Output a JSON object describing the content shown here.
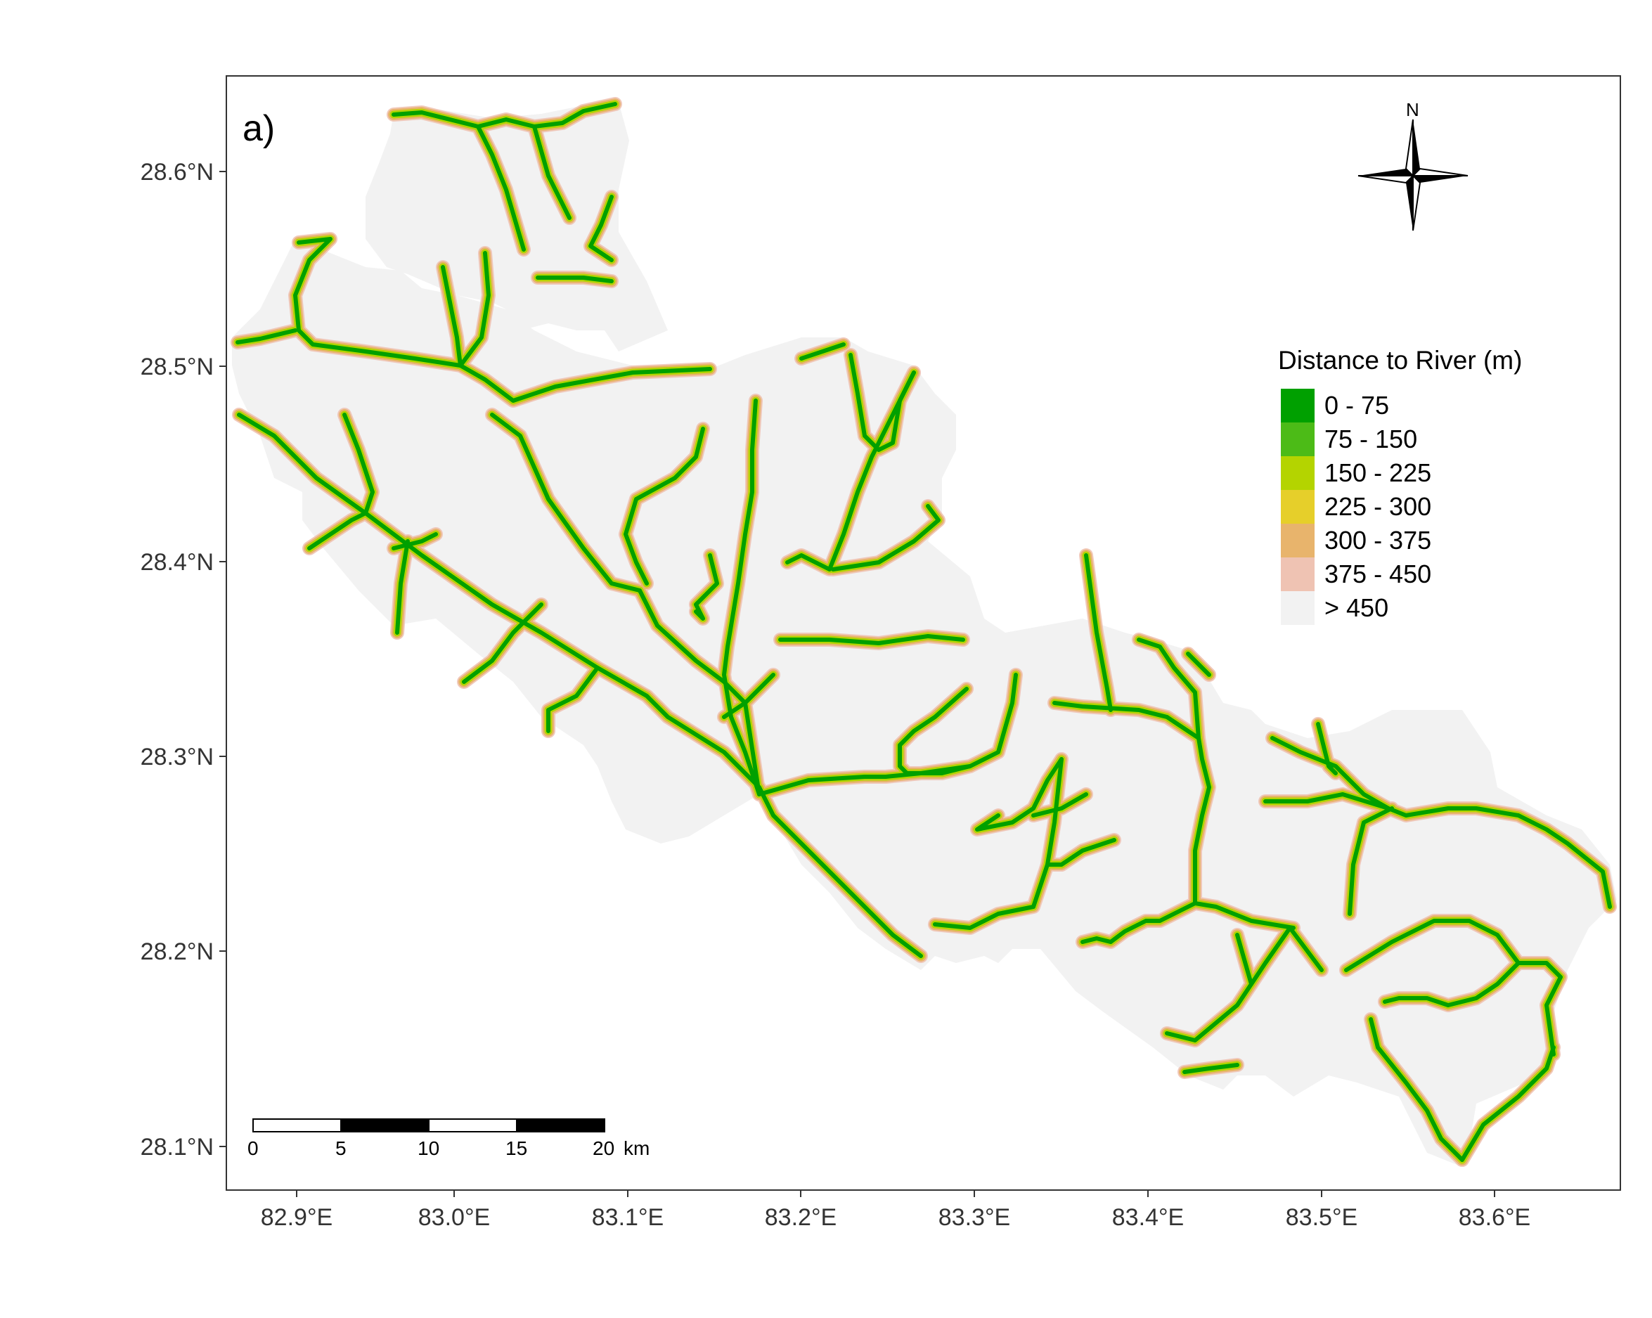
{
  "panel_label": "a)",
  "legend": {
    "title": "Distance to River (m)",
    "classes": [
      {
        "label": "0 - 75",
        "color": "#00a000"
      },
      {
        "label": "75 - 150",
        "color": "#4cbb17"
      },
      {
        "label": "150 - 225",
        "color": "#b4d400"
      },
      {
        "label": "225 - 300",
        "color": "#e6cf2a"
      },
      {
        "label": "300 - 375",
        "color": "#e8b46c"
      },
      {
        "label": "375 - 450",
        "color": "#efc3b3"
      },
      {
        "label": "> 450",
        "color": "#f2f2f2"
      }
    ]
  },
  "north_arrow": {
    "label": "N",
    "icon": "north-arrow-icon"
  },
  "scale_bar": {
    "ticks": [
      "0",
      "5",
      "10",
      "15",
      "20"
    ],
    "unit": "km"
  },
  "axes": {
    "x_ticks": [
      "82.9°E",
      "83.0°E",
      "83.1°E",
      "83.2°E",
      "83.3°E",
      "83.4°E",
      "83.5°E",
      "83.6°E"
    ],
    "y_ticks": [
      "28.6°N",
      "28.5°N",
      "28.4°N",
      "28.3°N",
      "28.2°N",
      "28.1°N"
    ]
  },
  "colors": {
    "watershed_fill": "#f2f2f2",
    "river_core": "#00a000",
    "river_halo": "#e8b46c",
    "frame": "#333333"
  }
}
